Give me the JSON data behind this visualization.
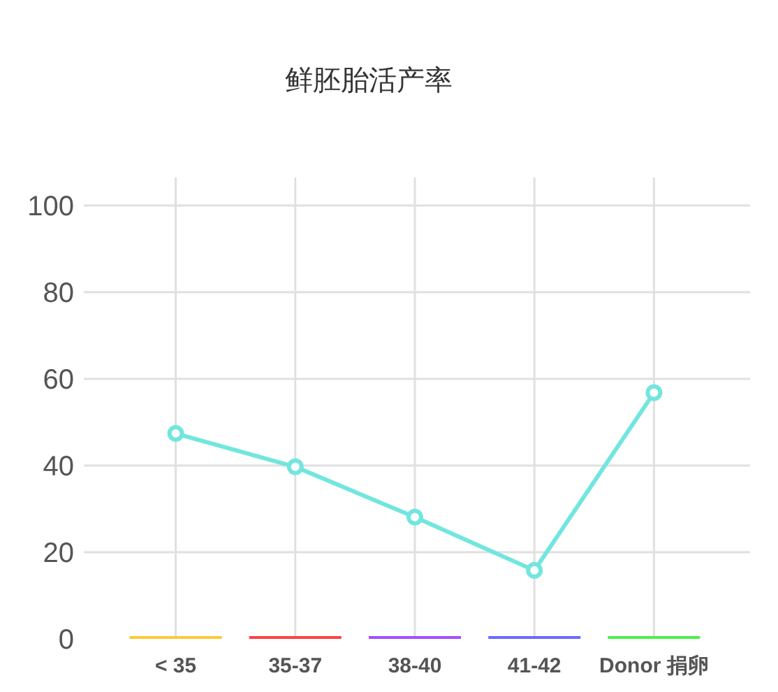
{
  "chart_data": {
    "type": "line",
    "title": "鲜胚胎活产率",
    "categories": [
      "< 35",
      "35-37",
      "38-40",
      "41-42",
      "Donor 捐卵"
    ],
    "colors": [
      "#fcc93c",
      "#ff4040",
      "#a64dff",
      "#6a6aff",
      "#4cf04c"
    ],
    "series": [
      {
        "color": "#72e6de",
        "values": [
          47.4,
          39.7,
          28.1,
          15.8,
          56.8
        ]
      }
    ],
    "ylim": [
      0,
      100
    ],
    "yticks": [
      0,
      20,
      40,
      60,
      80,
      100
    ],
    "grid": true,
    "marker": "circle",
    "line_style": "solid"
  }
}
